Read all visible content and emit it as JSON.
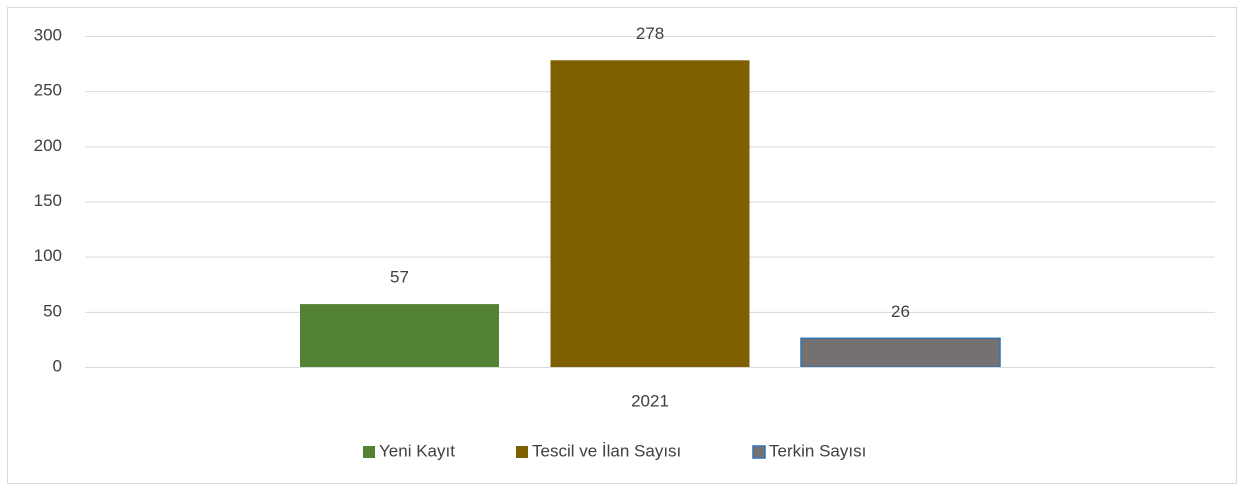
{
  "chart_data": {
    "type": "bar",
    "categories": [
      "2021"
    ],
    "series": [
      {
        "name": "Yeni Kayıt",
        "color": "#548235",
        "values": [
          57
        ]
      },
      {
        "name": "Tescil ve İlan Sayısı",
        "color": "#7f6000",
        "values": [
          278
        ]
      },
      {
        "name": "Terkin Sayısı",
        "color": "#767171",
        "edgecolor": "#2e75b6",
        "values": [
          26
        ]
      }
    ],
    "ylim": [
      0,
      300
    ],
    "yticks": [
      0,
      50,
      100,
      150,
      200,
      250,
      300
    ],
    "grid": true,
    "legend": "bottom"
  }
}
